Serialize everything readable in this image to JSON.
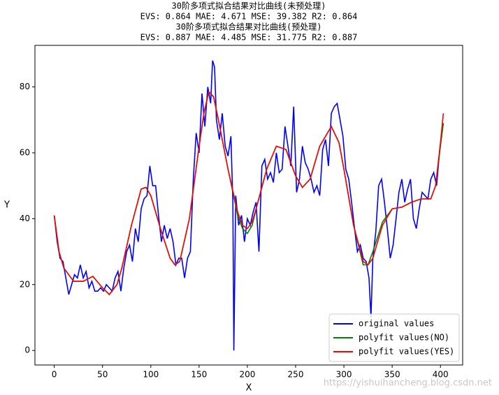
{
  "chart_data": {
    "type": "line",
    "title_lines": [
      "30阶多项式拟合结果对比曲线(未预处理)",
      "EVS: 0.864   MAE: 4.671   MSE: 39.382   R2: 0.864",
      "30阶多项式拟合结果对比曲线(预处理)",
      "EVS: 0.887   MAE: 4.485   MSE: 31.775   R2: 0.887"
    ],
    "x_label": "X",
    "y_label": "Y",
    "xlim": [
      -20,
      423
    ],
    "ylim": [
      -4.4,
      92.6
    ],
    "xticks": [
      0,
      50,
      100,
      150,
      200,
      250,
      300,
      350,
      400
    ],
    "yticks": [
      0,
      20,
      40,
      60,
      80
    ],
    "legend": "lower right",
    "watermark": "https://yishuihancheng.blog.csdn.net",
    "series": [
      {
        "name": "original values",
        "color": "#0000ff",
        "x": [
          0,
          3,
          6,
          9,
          12,
          15,
          18,
          21,
          24,
          27,
          30,
          33,
          36,
          39,
          42,
          45,
          48,
          51,
          54,
          57,
          60,
          63,
          66,
          69,
          72,
          75,
          78,
          81,
          84,
          87,
          90,
          93,
          96,
          99,
          102,
          105,
          108,
          111,
          114,
          117,
          120,
          123,
          126,
          129,
          132,
          135,
          138,
          141,
          144,
          147,
          150,
          153,
          156,
          159,
          162,
          164,
          166,
          168,
          171,
          174,
          177,
          180,
          183,
          185,
          186,
          188,
          191,
          194,
          197,
          200,
          203,
          206,
          209,
          212,
          215,
          218,
          221,
          224,
          227,
          230,
          233,
          236,
          239,
          242,
          245,
          248,
          251,
          254,
          257,
          260,
          263,
          266,
          269,
          272,
          275,
          278,
          281,
          284,
          287,
          290,
          293,
          296,
          299,
          302,
          305,
          308,
          311,
          314,
          317,
          320,
          323,
          326,
          328,
          330,
          333,
          336,
          339,
          342,
          345,
          348,
          351,
          354,
          357,
          360,
          363,
          366,
          369,
          372,
          375,
          378,
          381,
          384,
          387,
          390,
          393,
          396,
          399,
          402
        ],
        "values": [
          41,
          33,
          28,
          27,
          22,
          17,
          20,
          23,
          22,
          26,
          22,
          24,
          19,
          21,
          18,
          18,
          19,
          18,
          20,
          19,
          18,
          22,
          24,
          18,
          25,
          30,
          32,
          27,
          37,
          33,
          43,
          46,
          47,
          56,
          50,
          50,
          41,
          33,
          38,
          34,
          37,
          33,
          26,
          28,
          28,
          22,
          28,
          30,
          52,
          66,
          60,
          78,
          68,
          80,
          75,
          88,
          86,
          70,
          64,
          72,
          62,
          59,
          65,
          45,
          0,
          47,
          38,
          41,
          33,
          40,
          38,
          42,
          45,
          30,
          56,
          58,
          52,
          54,
          51,
          60,
          54,
          55,
          68,
          62,
          56,
          74,
          48,
          52,
          62,
          57,
          55,
          52,
          48,
          50,
          47,
          61,
          64,
          56,
          72,
          74,
          75,
          70,
          65,
          55,
          52,
          45,
          37,
          30,
          32,
          28,
          27,
          22,
          10,
          28,
          36,
          50,
          52,
          45,
          37,
          28,
          32,
          40,
          48,
          52,
          45,
          49,
          52,
          40,
          37,
          43,
          48,
          47,
          46,
          52,
          54,
          50,
          60,
          68
        ]
      },
      {
        "name": "polyfit values(NO)",
        "color": "#008000",
        "x": [
          0,
          5,
          10,
          20,
          30,
          40,
          50,
          57,
          65,
          70,
          80,
          90,
          95,
          100,
          110,
          120,
          125,
          130,
          140,
          150,
          155,
          160,
          165,
          170,
          180,
          190,
          195,
          200,
          205,
          210,
          220,
          230,
          240,
          250,
          257,
          265,
          275,
          287,
          295,
          300,
          310,
          320,
          325,
          330,
          340,
          350,
          360,
          370,
          380,
          390,
          395,
          400,
          403
        ],
        "values": [
          41,
          30,
          25,
          21,
          21,
          22.5,
          19,
          17,
          20,
          25,
          38,
          49,
          49.5,
          47,
          37,
          28,
          26,
          27,
          40,
          62,
          72,
          78.5,
          77,
          70,
          55,
          41,
          37,
          35.5,
          38,
          44,
          55,
          62,
          61,
          53,
          49.5,
          52,
          62,
          68,
          63,
          55,
          38,
          26,
          26,
          30,
          39,
          43,
          43.5,
          45,
          46,
          46,
          50,
          62,
          69
        ]
      },
      {
        "name": "polyfit values(YES)",
        "color": "#ff0000",
        "x": [
          0,
          5,
          10,
          20,
          30,
          40,
          50,
          57,
          65,
          70,
          80,
          90,
          95,
          100,
          110,
          120,
          125,
          130,
          140,
          150,
          155,
          160,
          165,
          170,
          180,
          190,
          195,
          200,
          205,
          210,
          220,
          230,
          240,
          250,
          257,
          265,
          275,
          287,
          295,
          300,
          310,
          320,
          325,
          330,
          340,
          350,
          360,
          370,
          380,
          390,
          395,
          400,
          403
        ],
        "values": [
          41,
          30,
          25,
          21,
          21,
          22.5,
          19,
          17,
          20,
          25,
          38,
          49,
          49.5,
          47,
          37,
          28,
          26,
          27,
          40,
          62,
          72,
          78.5,
          77,
          70,
          55,
          42,
          38,
          37,
          39,
          44,
          55,
          62,
          61,
          53,
          49.5,
          52,
          62,
          68,
          63,
          55,
          38,
          27,
          26,
          28,
          38,
          43,
          43.5,
          45,
          46,
          46,
          50,
          63,
          72
        ]
      }
    ]
  }
}
